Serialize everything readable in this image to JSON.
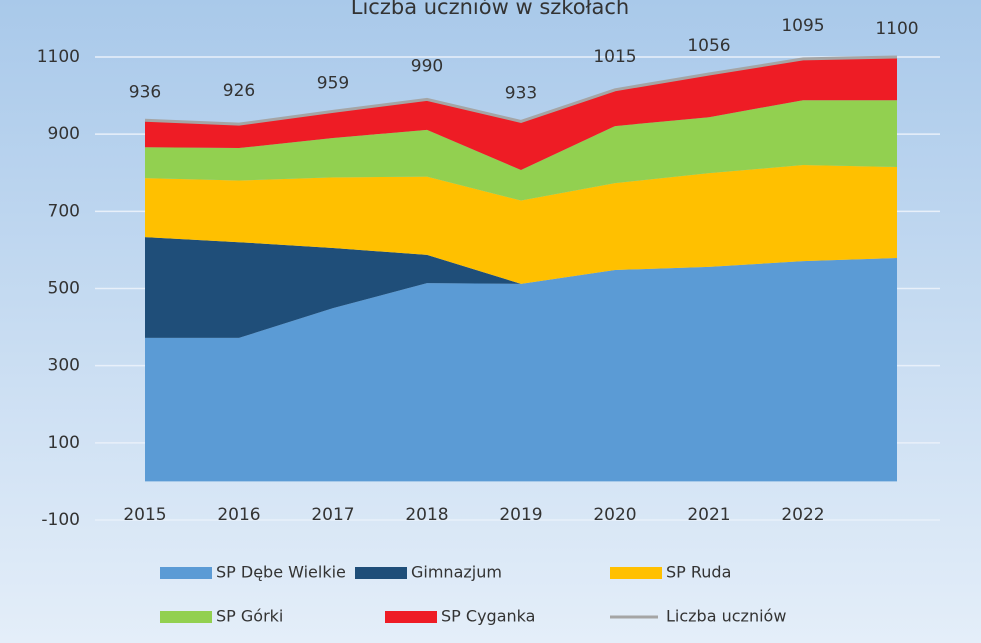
{
  "chart_data": {
    "type": "stacked_area",
    "title": "Liczba uczniów w szkołach",
    "categories": [
      "2015",
      "2016",
      "2017",
      "2018",
      "2019",
      "2020",
      "2021",
      "2022",
      null
    ],
    "series": [
      {
        "name": "SP Dębe Wielkie",
        "color": "#5b9bd5",
        "values": [
          372,
          372,
          449,
          514,
          512,
          548,
          556,
          571,
          579
        ]
      },
      {
        "name": "Gimnazjum",
        "color": "#1f4e79",
        "values": [
          261,
          248,
          156,
          73,
          0,
          0,
          0,
          0,
          0
        ]
      },
      {
        "name": "SP Ruda",
        "color": "#ffc000",
        "values": [
          153,
          160,
          183,
          203,
          216,
          225,
          243,
          249,
          236
        ]
      },
      {
        "name": "SP Górki",
        "color": "#92d050",
        "values": [
          80,
          84,
          102,
          121,
          79,
          148,
          145,
          168,
          173
        ]
      },
      {
        "name": "SP Cyganka",
        "color": "#ee1c25",
        "values": [
          70,
          62,
          69,
          79,
          126,
          94,
          112,
          107,
          112
        ]
      },
      {
        "name": "Liczba uczniów",
        "color": "#a5a5a5",
        "type": "line",
        "values": [
          936,
          926,
          959,
          990,
          933,
          1015,
          1056,
          1095,
          1100
        ]
      }
    ],
    "ylim": [
      -100,
      1100
    ],
    "yticks": [
      -100,
      100,
      300,
      500,
      700,
      900,
      1100
    ],
    "grid": true,
    "legend": "bottom"
  }
}
